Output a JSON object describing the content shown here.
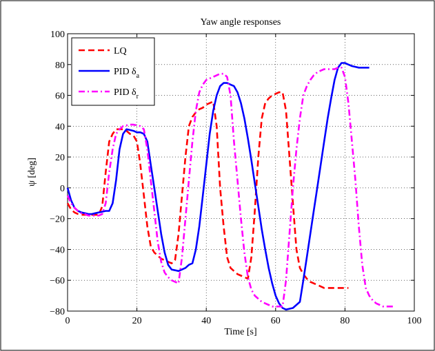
{
  "chart_data": {
    "type": "line",
    "title": "Yaw angle responses",
    "xlabel": "Time [s]",
    "ylabel": "ψ [deg]",
    "xlim": [
      0,
      100
    ],
    "ylim": [
      -80,
      100
    ],
    "xticks": [
      0,
      20,
      40,
      60,
      80,
      100
    ],
    "yticks": [
      -80,
      -60,
      -40,
      -20,
      0,
      20,
      40,
      60,
      80,
      100
    ],
    "x_tick_labels": [
      "0",
      "20",
      "40",
      "60",
      "80",
      "100"
    ],
    "y_tick_labels": [
      "−80",
      "−60",
      "−40",
      "−20",
      "0",
      "20",
      "40",
      "60",
      "80",
      "100"
    ],
    "grid": true,
    "legend_position": "top-left",
    "series": [
      {
        "name": "LQ",
        "legend_main": "LQ",
        "legend_sub": "",
        "color": "#ff0000",
        "style": "dashed",
        "x": [
          0,
          1,
          2,
          3,
          4,
          5,
          6,
          7,
          8,
          9,
          10,
          11,
          12,
          13,
          14,
          15,
          16,
          17,
          18,
          19,
          20,
          21,
          22,
          23,
          24,
          25,
          26,
          27,
          28,
          29,
          30,
          31,
          32,
          33,
          34,
          35,
          36,
          37,
          38,
          39,
          40,
          41,
          42,
          43,
          44,
          45,
          46,
          47,
          48,
          49,
          50,
          51,
          52,
          53,
          54,
          55,
          56,
          57,
          58,
          59,
          60,
          61,
          62,
          63,
          64,
          65,
          66,
          67,
          68,
          69,
          70,
          71,
          72,
          73,
          74,
          75,
          76,
          77,
          78,
          79,
          80,
          81
        ],
        "y": [
          -10,
          -14,
          -16,
          -17,
          -17.5,
          -17.5,
          -17.5,
          -17.5,
          -17.5,
          -17.5,
          -12,
          10,
          30,
          35,
          38,
          38,
          38,
          37,
          35,
          34,
          30,
          15,
          -5,
          -25,
          -38,
          -42,
          -44,
          -46,
          -47,
          -48,
          -49,
          -47,
          -30,
          -5,
          20,
          40,
          46,
          49,
          51,
          52,
          54,
          55,
          56,
          40,
          0,
          -25,
          -45,
          -52,
          -54,
          -56,
          -57,
          -58,
          -59,
          -45,
          -15,
          20,
          45,
          55,
          58,
          60,
          61,
          62,
          62,
          50,
          20,
          -10,
          -40,
          -52,
          -56,
          -59,
          -61,
          -62,
          -63,
          -64,
          -65,
          -65,
          -65,
          -65,
          -65,
          -65,
          -65,
          -65
        ]
      },
      {
        "name": "PID δa",
        "legend_main": "PID δ",
        "legend_sub": "a",
        "color": "#0000ff",
        "style": "solid",
        "x": [
          0,
          1,
          2,
          3,
          4,
          5,
          6,
          7,
          8,
          9,
          10,
          11,
          12,
          13,
          14,
          15,
          16,
          17,
          18,
          19,
          20,
          21,
          22,
          23,
          24,
          25,
          26,
          27,
          28,
          29,
          30,
          31,
          32,
          33,
          34,
          35,
          36,
          37,
          38,
          39,
          40,
          41,
          42,
          43,
          44,
          45,
          46,
          47,
          48,
          49,
          50,
          51,
          52,
          53,
          54,
          55,
          56,
          57,
          58,
          59,
          60,
          61,
          62,
          63,
          64,
          65,
          66,
          67,
          68,
          69,
          70,
          71,
          72,
          73,
          74,
          75,
          76,
          77,
          78,
          79,
          80,
          81,
          82,
          83,
          84,
          85,
          86,
          87
        ],
        "y": [
          0,
          -8,
          -13,
          -15,
          -16,
          -16.5,
          -17,
          -17,
          -16.5,
          -16,
          -15.5,
          -15,
          -15,
          -10,
          5,
          25,
          35,
          38,
          37.5,
          37,
          36,
          36,
          35,
          30,
          15,
          0,
          -15,
          -30,
          -42,
          -50,
          -53,
          -53.5,
          -54,
          -53,
          -52,
          -50,
          -49,
          -40,
          -25,
          -5,
          15,
          35,
          50,
          60,
          66,
          68,
          68,
          67,
          66,
          62,
          55,
          45,
          32,
          18,
          3,
          -12,
          -27,
          -40,
          -52,
          -62,
          -70,
          -75,
          -78,
          -79,
          -78.5,
          -78,
          -76,
          -74,
          -60,
          -45,
          -30,
          -15,
          0,
          15,
          30,
          45,
          58,
          70,
          78,
          81,
          81,
          80,
          79,
          78.5,
          78,
          78,
          78,
          78
        ]
      },
      {
        "name": "PID δr",
        "legend_main": "PID δ",
        "legend_sub": "r",
        "color": "#ff00ff",
        "style": "dashdot",
        "x": [
          0,
          1,
          2,
          3,
          4,
          5,
          6,
          7,
          8,
          9,
          10,
          11,
          12,
          13,
          14,
          15,
          16,
          17,
          18,
          19,
          20,
          21,
          22,
          23,
          24,
          25,
          26,
          27,
          28,
          29,
          30,
          31,
          32,
          33,
          34,
          35,
          36,
          37,
          38,
          39,
          40,
          41,
          42,
          43,
          44,
          45,
          46,
          47,
          48,
          49,
          50,
          51,
          52,
          53,
          54,
          55,
          56,
          57,
          58,
          59,
          60,
          61,
          62,
          63,
          64,
          65,
          66,
          67,
          68,
          69,
          70,
          71,
          72,
          73,
          74,
          75,
          76,
          77,
          78,
          79,
          80,
          81,
          82,
          83,
          84,
          85,
          86,
          87,
          88,
          89,
          90,
          91,
          92,
          93,
          94
        ],
        "y": [
          -5,
          -10,
          -13,
          -15,
          -16.5,
          -17,
          -18,
          -18,
          -18,
          -18,
          -17,
          -10,
          10,
          25,
          35,
          38,
          40,
          40.5,
          41,
          41,
          40.5,
          40,
          38,
          25,
          5,
          -15,
          -35,
          -48,
          -55,
          -58,
          -60,
          -61,
          -62,
          -45,
          -20,
          5,
          30,
          50,
          62,
          67,
          70,
          71,
          72,
          73,
          74,
          74,
          72,
          60,
          30,
          5,
          -20,
          -42,
          -58,
          -66,
          -70,
          -72,
          -74,
          -75,
          -76,
          -77,
          -77,
          -77,
          -77,
          -60,
          -30,
          0,
          25,
          45,
          60,
          66,
          70,
          73,
          75,
          76,
          77,
          77,
          77,
          77,
          78,
          78,
          72,
          55,
          30,
          5,
          -25,
          -50,
          -65,
          -70,
          -73,
          -75,
          -76,
          -77,
          -77,
          -77,
          -77
        ]
      }
    ]
  }
}
